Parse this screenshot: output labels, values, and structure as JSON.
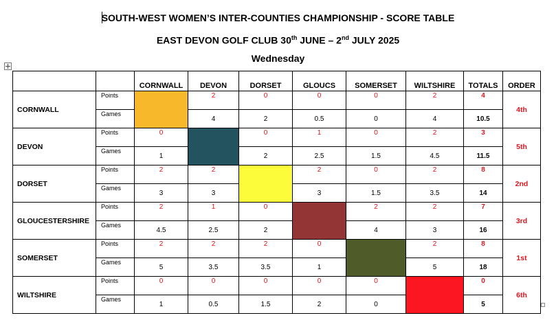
{
  "document": {
    "title": "SOUTH-WEST WOMEN’S INTER-COUNTIES CHAMPIONSHIP - SCORE TABLE",
    "venue_prefix": "EAST DEVON GOLF CLUB 30",
    "sup_start": "th",
    "venue_mid": " JUNE – 2",
    "sup_end": "nd",
    "venue_suffix": " JULY 2025",
    "day": "Wednesday"
  },
  "table": {
    "columns": [
      "CORNWALL",
      "DEVON",
      "DORSET",
      "GLOUCS",
      "SOMERSET",
      "WILTSHIRE"
    ],
    "totals_header": "TOTALS",
    "order_header": "ORDER",
    "points_label": "Points",
    "games_label": "Games",
    "rows": [
      {
        "team": "CORNWALL",
        "color": "#f7b92b",
        "points": [
          null,
          "2",
          "0",
          "0",
          "0",
          "2"
        ],
        "points_total": "4",
        "games": [
          null,
          "4",
          "2",
          "0.5",
          "0",
          "4"
        ],
        "games_total": "10.5",
        "order": "4th"
      },
      {
        "team": "DEVON",
        "color": "#23535f",
        "points": [
          "0",
          null,
          "0",
          "1",
          "0",
          "2"
        ],
        "points_total": "3",
        "games": [
          "1",
          null,
          "2",
          "2.5",
          "1.5",
          "4.5"
        ],
        "games_total": "11.5",
        "order": "5th"
      },
      {
        "team": "DORSET",
        "color": "#fdfc3a",
        "points": [
          "2",
          "2",
          null,
          "2",
          "0",
          "2"
        ],
        "points_total": "8",
        "games": [
          "3",
          "3",
          null,
          "3",
          "1.5",
          "3.5"
        ],
        "games_total": "14",
        "order": "2nd"
      },
      {
        "team": "GLOUCESTERSHIRE",
        "color": "#923534",
        "points": [
          "2",
          "1",
          "0",
          null,
          "2",
          "2"
        ],
        "points_total": "7",
        "games": [
          "4.5",
          "2.5",
          "2",
          null,
          "4",
          "3"
        ],
        "games_total": "16",
        "order": "3rd"
      },
      {
        "team": "SOMERSET",
        "color": "#4f5c2a",
        "points": [
          "2",
          "2",
          "2",
          "0",
          null,
          "2"
        ],
        "points_total": "8",
        "games": [
          "5",
          "3.5",
          "3.5",
          "1",
          null,
          "5"
        ],
        "games_total": "18",
        "order": "1st"
      },
      {
        "team": "WILTSHIRE",
        "color": "#fb1621",
        "points": [
          "0",
          "0",
          "0",
          "0",
          "0",
          null
        ],
        "points_total": "0",
        "games": [
          "1",
          "0.5",
          "1.5",
          "2",
          "0",
          null
        ],
        "games_total": "5",
        "order": "6th"
      }
    ]
  }
}
